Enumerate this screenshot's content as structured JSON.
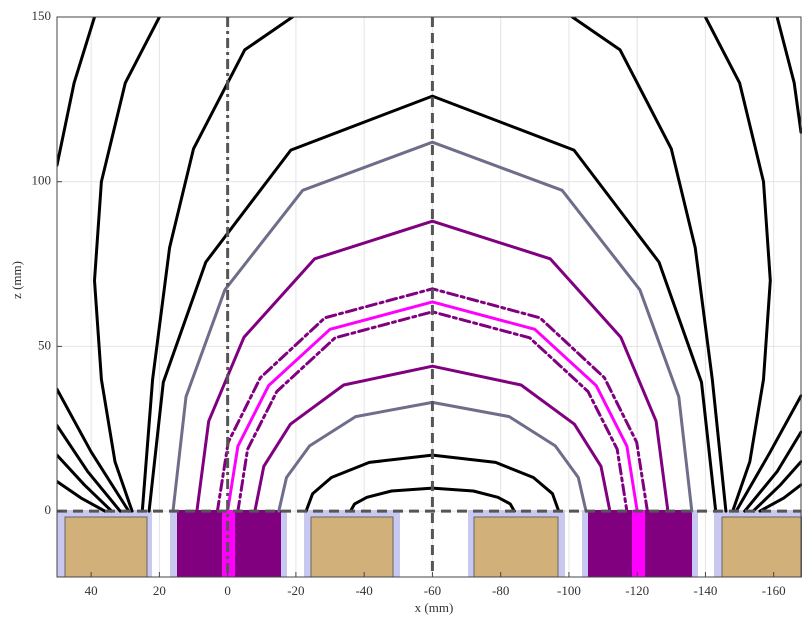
{
  "chart_data": {
    "type": "line",
    "xlabel": "x (mm)",
    "ylabel": "z (mm)",
    "xlim": [
      50,
      -168
    ],
    "ylim": [
      -20,
      150
    ],
    "xticks": [
      40,
      20,
      0,
      -20,
      -40,
      -60,
      -80,
      -100,
      -120,
      -140,
      -160
    ],
    "yticks": [
      0,
      50,
      100,
      150
    ],
    "grid": true,
    "reference_lines": [
      {
        "axis": "x",
        "value": 0,
        "dash": "dashdot",
        "color": "#555555"
      },
      {
        "axis": "x",
        "value": -60,
        "dash": "dashed",
        "color": "#555555"
      },
      {
        "axis": "y",
        "value": 0,
        "dash": "dashed",
        "color": "#555555"
      }
    ],
    "series": [
      {
        "color": "#000000",
        "dash": "solid",
        "x": [
          -36,
          -37.2,
          -40.8,
          -48,
          -60,
          -72,
          -79.2,
          -82.8,
          -84
        ],
        "y": [
          0,
          2.2,
          4.2,
          6.1,
          7,
          6.1,
          4.2,
          2.2,
          0
        ]
      },
      {
        "color": "#000000",
        "dash": "solid",
        "x": [
          -23,
          -24.9,
          -30.4,
          -41.5,
          -60,
          -78.5,
          -89.6,
          -95.2,
          -97
        ],
        "y": [
          0,
          5.3,
          10.2,
          14.8,
          17,
          14.8,
          10.2,
          5.3,
          0
        ]
      },
      {
        "color": "#6e6e8a",
        "dash": "solid",
        "x": [
          -15,
          -17.25,
          -24,
          -37.5,
          -60,
          -82.5,
          -96,
          -102.75,
          -105
        ],
        "y": [
          0,
          10.2,
          19.8,
          28.7,
          33,
          28.7,
          19.8,
          10.2,
          0
        ]
      },
      {
        "color": "#800080",
        "dash": "solid",
        "x": [
          -8,
          -10.6,
          -18.4,
          -34,
          -60,
          -86,
          -101.6,
          -109.4,
          -112
        ],
        "y": [
          0,
          13.6,
          26.4,
          38.3,
          44,
          38.3,
          26.4,
          13.6,
          0
        ]
      },
      {
        "color": "#800080",
        "dash": "dashdot",
        "x": [
          -3,
          -5.85,
          -14.4,
          -31.5,
          -60,
          -88.5,
          -105.6,
          -114.15,
          -117
        ],
        "y": [
          0,
          18.8,
          36.3,
          52.6,
          60.5,
          52.6,
          36.3,
          18.8,
          0
        ]
      },
      {
        "color": "#ff00ff",
        "dash": "solid",
        "x": [
          0,
          -3,
          -12,
          -30,
          -60,
          -90,
          -108,
          -117,
          -120
        ],
        "y": [
          0,
          19.7,
          38.1,
          55.2,
          63.5,
          55.2,
          38.1,
          19.7,
          0
        ]
      },
      {
        "color": "#800080",
        "dash": "dashdot",
        "x": [
          3,
          -0.15,
          -9.6,
          -28.5,
          -60,
          -91.5,
          -110.4,
          -119.85,
          -123
        ],
        "y": [
          0,
          20.9,
          40.5,
          58.7,
          67.5,
          58.7,
          40.5,
          20.9,
          0
        ]
      },
      {
        "color": "#800080",
        "dash": "solid",
        "x": [
          9,
          5.55,
          -4.8,
          -25.5,
          -60,
          -94.5,
          -115.2,
          -125.55,
          -129
        ],
        "y": [
          0,
          27.3,
          52.8,
          76.6,
          88,
          76.6,
          52.8,
          27.3,
          0
        ]
      },
      {
        "color": "#6e6e8a",
        "dash": "solid",
        "x": [
          16,
          12.2,
          0.8,
          -22,
          -60,
          -98,
          -120.8,
          -132.2,
          -136
        ],
        "y": [
          0,
          34.7,
          67.2,
          97.4,
          112,
          97.4,
          67.2,
          34.7,
          0
        ]
      },
      {
        "color": "#000000",
        "dash": "solid",
        "x": [
          23,
          18.85,
          6.4,
          -18.5,
          -60,
          -101.5,
          -126.4,
          -138.85,
          -143
        ],
        "y": [
          0,
          39.1,
          75.6,
          109.6,
          126,
          109.6,
          75.6,
          39.1,
          0
        ]
      },
      {
        "color": "#000000",
        "dash": "solid",
        "x": [
          25,
          22,
          17,
          10,
          -5,
          -19,
          null,
          -101,
          -115,
          -130,
          -137,
          -142,
          -146
        ],
        "y": [
          0,
          40,
          80,
          110,
          140,
          150,
          null,
          150,
          140,
          110,
          80,
          40,
          0
        ]
      },
      {
        "color": "#000000",
        "dash": "solid",
        "x": [
          20,
          30,
          37,
          39,
          37,
          33,
          28,
          null,
          -140,
          -150,
          -157,
          -159,
          -157,
          -153,
          -148
        ],
        "y": [
          150,
          130,
          100,
          70,
          40,
          15,
          0,
          null,
          150,
          130,
          100,
          70,
          40,
          15,
          0
        ]
      },
      {
        "color": "#000000",
        "dash": "solid",
        "x": [
          39,
          45,
          50,
          null,
          -161,
          -166,
          -168
        ],
        "y": [
          150,
          130,
          105,
          null,
          150,
          130,
          115
        ]
      },
      {
        "color": "#000000",
        "dash": "solid",
        "x": [
          50,
          40,
          29,
          null,
          -168,
          -159,
          -149
        ],
        "y": [
          37,
          18,
          0,
          null,
          35,
          18,
          0
        ]
      },
      {
        "color": "#000000",
        "dash": "solid",
        "x": [
          50,
          41,
          31.5,
          null,
          -168,
          -161,
          -151.5
        ],
        "y": [
          26,
          12,
          0,
          null,
          24,
          12,
          0
        ]
      },
      {
        "color": "#000000",
        "dash": "solid",
        "x": [
          50,
          42,
          34,
          null,
          -168,
          -162,
          -154
        ],
        "y": [
          17,
          8,
          0,
          null,
          15,
          8,
          0
        ]
      },
      {
        "color": "#000000",
        "dash": "solid",
        "x": [
          50,
          43,
          36,
          null,
          -168,
          -163,
          -156
        ],
        "y": [
          9,
          4,
          0,
          null,
          8,
          4,
          0
        ]
      }
    ]
  }
}
